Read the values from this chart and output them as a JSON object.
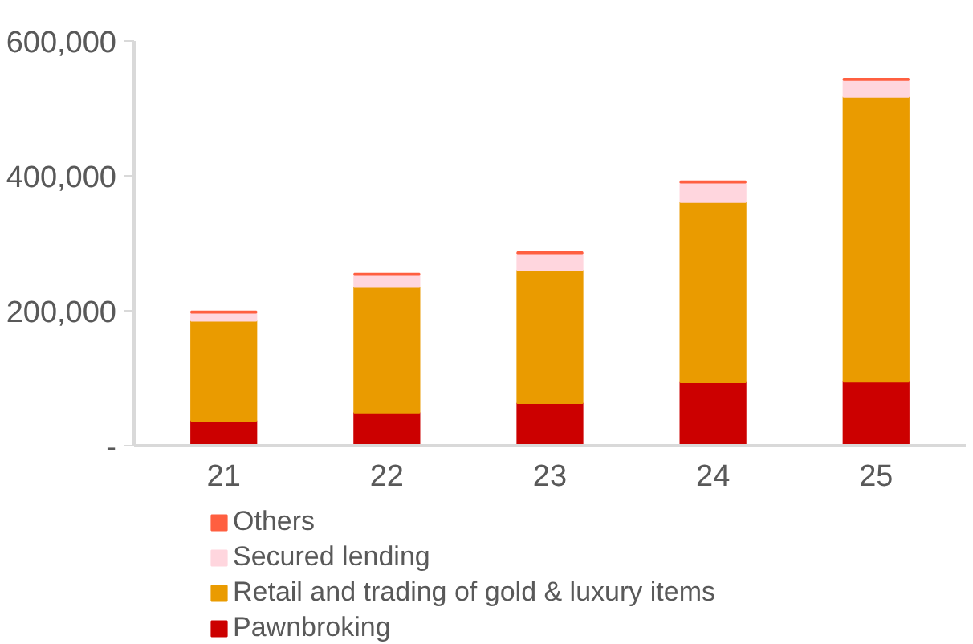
{
  "chart_data": {
    "type": "bar",
    "stacked": true,
    "categories": [
      "21",
      "22",
      "23",
      "24",
      "25"
    ],
    "series": [
      {
        "name": "Pawnbroking",
        "color": "#cc0000",
        "values": [
          37000,
          49000,
          63000,
          94000,
          95000
        ]
      },
      {
        "name": "Retail and trading of gold & luxury items",
        "color": "#ea9b00",
        "values": [
          148000,
          186000,
          197000,
          267000,
          422000
        ]
      },
      {
        "name": "Secured lending",
        "color": "#ffd6de",
        "values": [
          12000,
          18000,
          25000,
          29000,
          25000
        ]
      },
      {
        "name": "Others",
        "color": "#ff5f40",
        "values": [
          2000,
          2000,
          2000,
          2000,
          2000
        ]
      }
    ],
    "ylim": [
      0,
      600000
    ],
    "yticks": [
      {
        "value": 0,
        "label": "-"
      },
      {
        "value": 200000,
        "label": "200,000"
      },
      {
        "value": 400000,
        "label": "400,000"
      },
      {
        "value": 600000,
        "label": "600,000"
      }
    ],
    "grid": false,
    "legend": "bottom"
  }
}
